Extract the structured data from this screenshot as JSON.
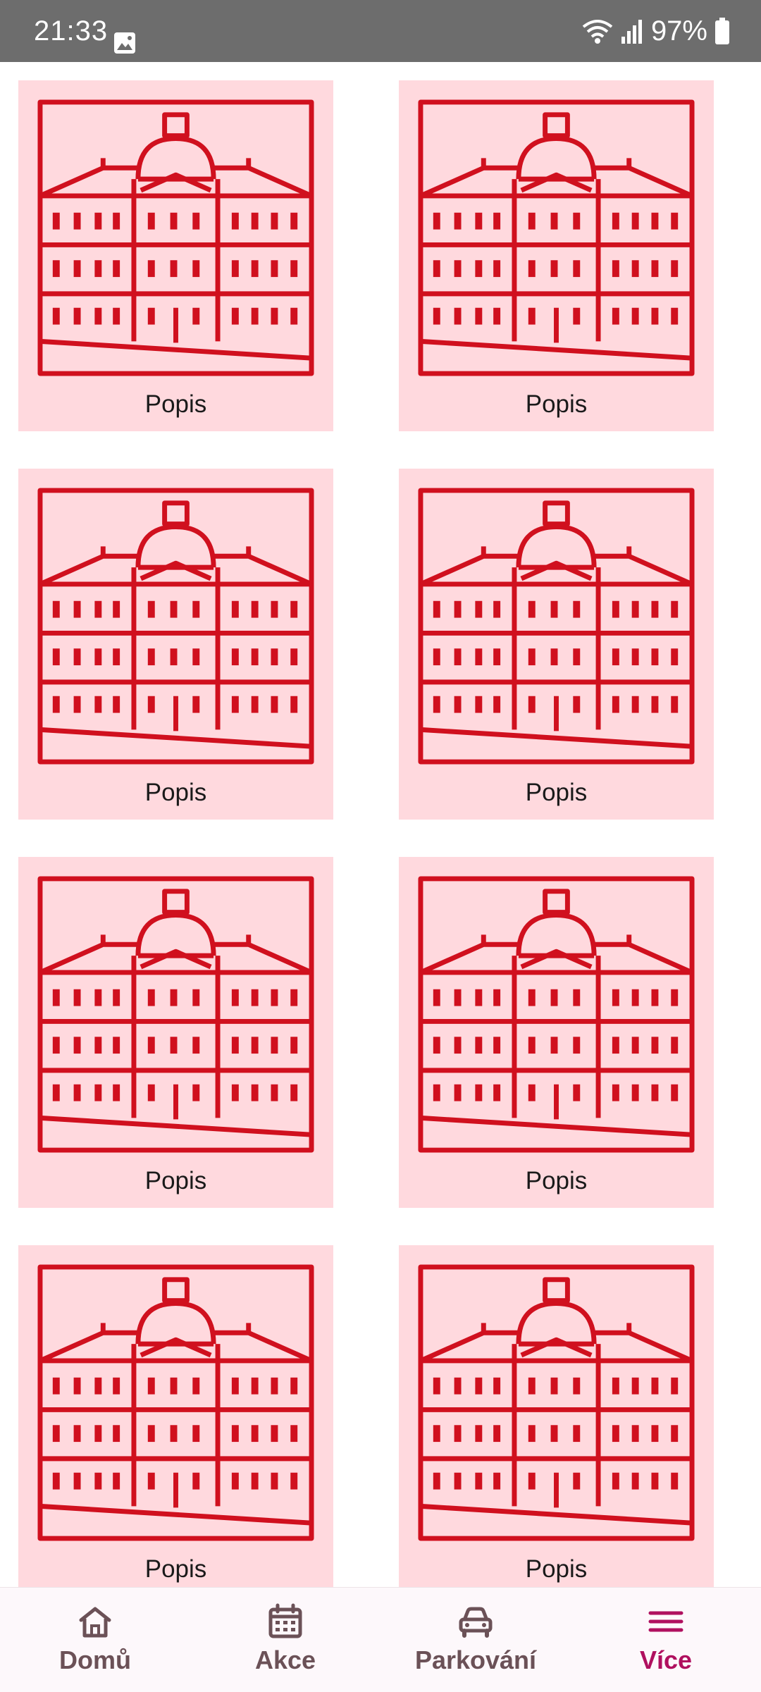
{
  "status_bar": {
    "time": "21:33",
    "battery": "97%",
    "icons": [
      "gallery-icon",
      "wifi-icon",
      "signal-icon",
      "battery-icon"
    ]
  },
  "grid": {
    "items": [
      {
        "label": "Popis"
      },
      {
        "label": "Popis"
      },
      {
        "label": "Popis"
      },
      {
        "label": "Popis"
      },
      {
        "label": "Popis"
      },
      {
        "label": "Popis"
      },
      {
        "label": "Popis"
      },
      {
        "label": "Popis"
      }
    ],
    "image_icon": "town-hall-building-icon",
    "card_color": "#ffd9de",
    "icon_color": "#d0101e"
  },
  "bottom_nav": {
    "items": [
      {
        "label": "Domů",
        "icon": "home-icon"
      },
      {
        "label": "Akce",
        "icon": "calendar-icon"
      },
      {
        "label": "Parkování",
        "icon": "car-icon"
      },
      {
        "label": "Více",
        "icon": "menu-icon"
      }
    ],
    "active_index": 3,
    "active_color": "#b0105f",
    "inactive_color": "#6b5157"
  }
}
